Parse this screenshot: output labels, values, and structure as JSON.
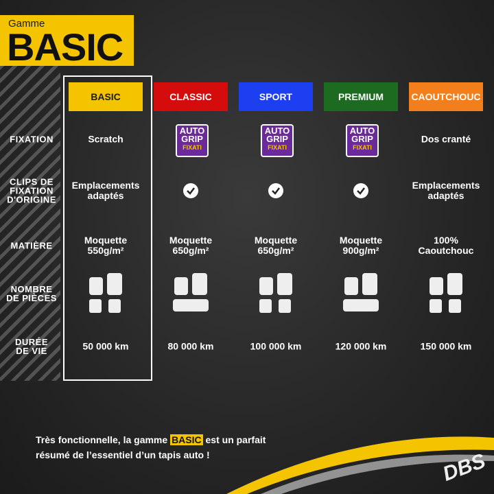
{
  "header": {
    "small": "Gamme",
    "title": "BASIC"
  },
  "table": {
    "columns": [
      {
        "name": "BASIC",
        "color": "#f5c400",
        "text_color": "#1a1a1a"
      },
      {
        "name": "CLASSIC",
        "color": "#d40c0c",
        "text_color": "#ffffff"
      },
      {
        "name": "SPORT",
        "color": "#1c3ff0",
        "text_color": "#ffffff"
      },
      {
        "name": "PREMIUM",
        "color": "#1d6a21",
        "text_color": "#ffffff"
      },
      {
        "name": "CAOUTCHOUC",
        "color": "#f27f1b",
        "text_color": "#ffffff"
      }
    ],
    "rows": [
      {
        "label": "FIXATION",
        "cells": [
          "Scratch",
          null,
          null,
          null,
          "Dos cranté"
        ]
      },
      {
        "label": "CLIPS DE\nFIXATION\nD'ORIGINE",
        "cells": [
          "Emplacements\nadaptés",
          null,
          null,
          null,
          "Emplacements\nadaptés"
        ]
      },
      {
        "label": "MATIÈRE",
        "cells": [
          "Moquette\n550g/m²",
          "Moquette\n650g/m²",
          "Moquette\n650g/m²",
          "Moquette\n900g/m²",
          "100%\nCaoutchouc"
        ]
      },
      {
        "label": "NOMBRE\nDE PIÈCES",
        "cells": []
      },
      {
        "label": "DURÉE\nDE VIE",
        "cells": [
          "50 000 km",
          "80 000 km",
          "100 000 km",
          "120 000 km",
          "150 000 km"
        ]
      }
    ]
  },
  "logo": {
    "line1": "AUTO",
    "line2": "GRIP",
    "line3": "FIXATI"
  },
  "footer": {
    "before": "Très fonctionnelle, la gamme ",
    "highlight": "BASIC",
    "after": " est un parfait\nrésumé de l’essentiel d’un tapis auto !"
  },
  "brand": "DBS"
}
